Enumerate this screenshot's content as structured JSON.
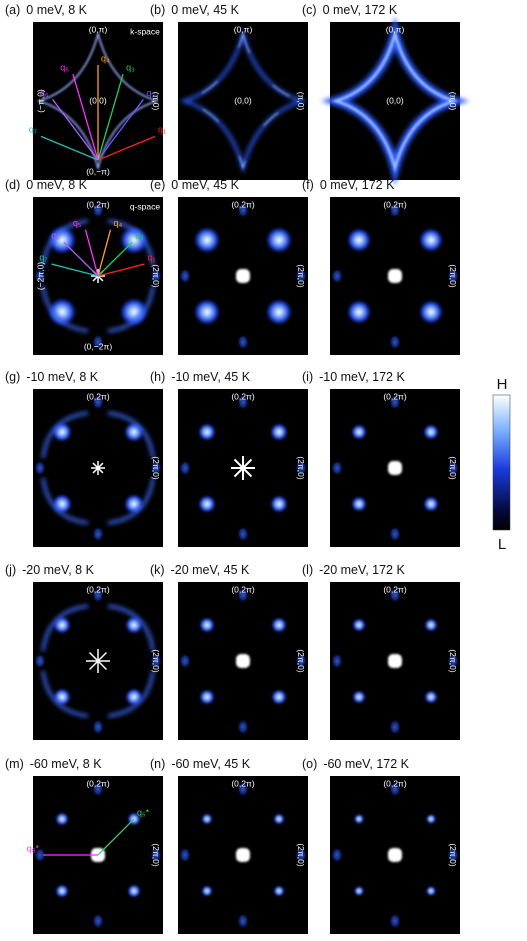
{
  "panels": [
    {
      "label": "(a)",
      "title": "0 meV, 8 K",
      "top": "(0,π)",
      "left": "(−π,0)",
      "right": "(π,0)",
      "bottom": "(0,−π)",
      "center": "(0,0)",
      "corner": "k-space",
      "vectors": [
        "q₁",
        "q₂",
        "q₃",
        "q₄",
        "q₅",
        "q₆",
        "q₇"
      ]
    },
    {
      "label": "(b)",
      "title": "0 meV, 45 K",
      "top": "(0,π)",
      "right": "(π,0)",
      "center": "(0,0)"
    },
    {
      "label": "(c)",
      "title": "0 meV, 172 K",
      "top": "(0,π)",
      "right": "(π,0)",
      "center": "(0,0)"
    },
    {
      "label": "(d)",
      "title": "0 meV, 8 K",
      "top": "(0,2π)",
      "left": "(−2π,0)",
      "right": "(2π,0)",
      "bottom": "(0,−2π)",
      "corner": "q-space",
      "vectors": [
        "q₁",
        "q₃",
        "q₄",
        "q₅",
        "q₆",
        "q₇"
      ]
    },
    {
      "label": "(e)",
      "title": "0 meV, 45 K",
      "top": "(0,2π)",
      "right": "(2π,0)"
    },
    {
      "label": "(f)",
      "title": "0 meV, 172 K",
      "top": "(0,2π)",
      "right": "(2π,0)"
    },
    {
      "label": "(g)",
      "title": "-10 meV, 8 K",
      "top": "(0,2π)",
      "right": "(2π,0)"
    },
    {
      "label": "(h)",
      "title": "-10 meV, 45 K",
      "top": "(0,2π)",
      "right": "(2π,0)"
    },
    {
      "label": "(i)",
      "title": "-10 meV, 172 K",
      "top": "(0,2π)",
      "right": "(2π,0)"
    },
    {
      "label": "(j)",
      "title": "-20 meV, 8 K",
      "top": "(0,2π)",
      "right": "(2π,0)"
    },
    {
      "label": "(k)",
      "title": "-20 meV, 45 K",
      "top": "(0,2π)",
      "right": "(2π,0)"
    },
    {
      "label": "(l)",
      "title": "-20 meV, 172 K",
      "top": "(0,2π)",
      "right": "(2π,0)"
    },
    {
      "label": "(m)",
      "title": "-60 meV, 8 K",
      "top": "(0,2π)",
      "right": "(2π,0)",
      "vectors": [
        "q₈*",
        "q₅*"
      ]
    },
    {
      "label": "(n)",
      "title": "-60 meV, 45 K",
      "top": "(0,2π)",
      "right": "(2π,0)"
    },
    {
      "label": "(o)",
      "title": "-60 meV, 172 K",
      "top": "(0,2π)",
      "right": "(2π,0)"
    }
  ],
  "colorbar": {
    "high": "H",
    "low": "L"
  }
}
